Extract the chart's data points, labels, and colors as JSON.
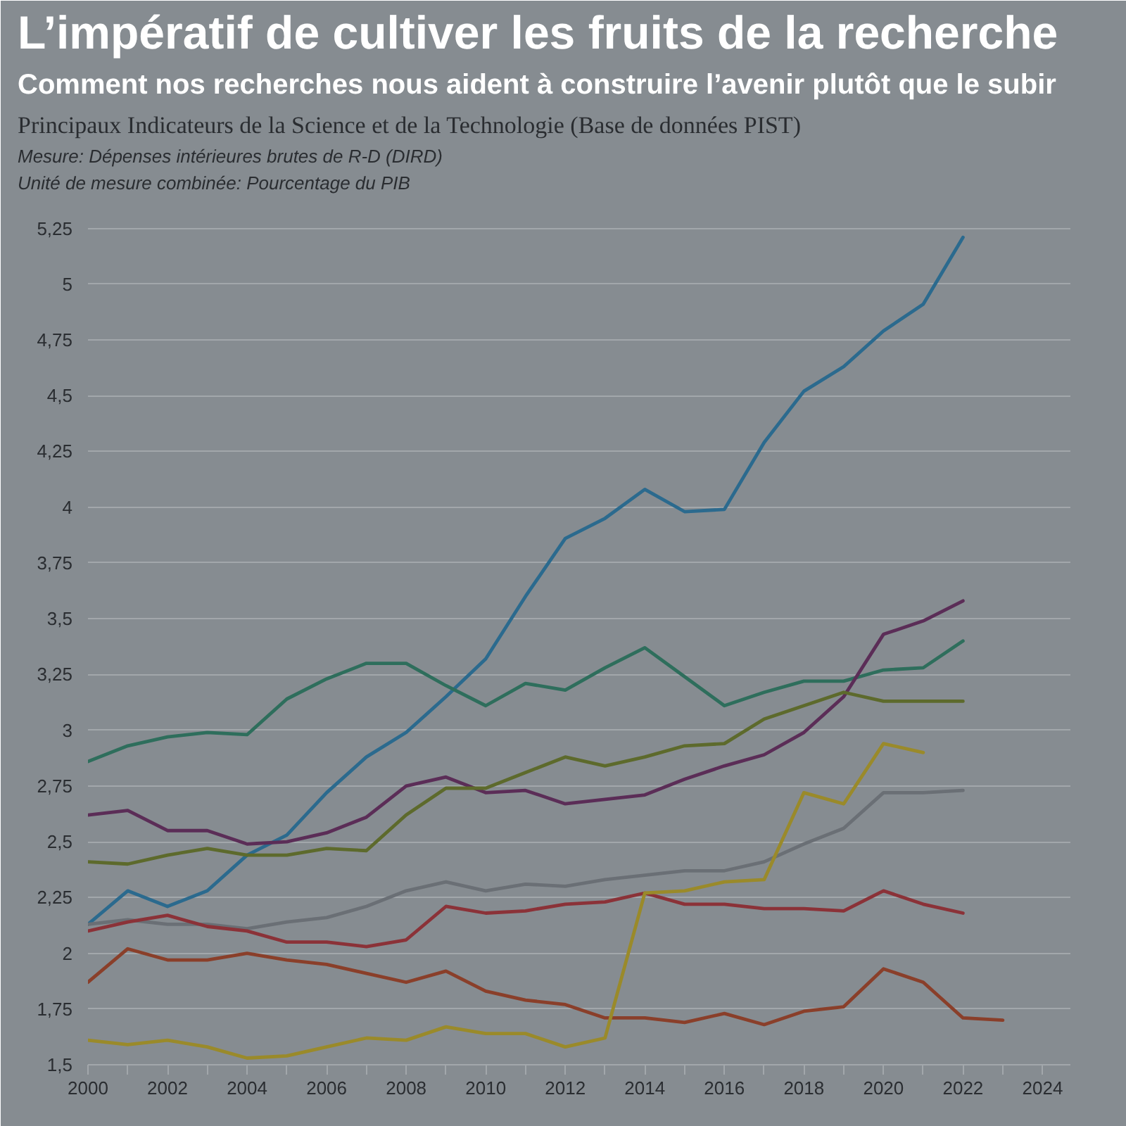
{
  "chart_data": {
    "type": "line",
    "title": "L’impératif de cultiver les fruits de la recherche",
    "subtitle": "Comment nos recherches nous aident à construire l’avenir plutôt que le subir",
    "annotations": [
      "Principaux Indicateurs de la Science et de la Technologie (Base de données PIST)",
      "Mesure: Dépenses intérieures brutes de R-D (DIRD)",
      "Unité de mesure combinée: Pourcentage du PIB"
    ],
    "x": [
      2000,
      2001,
      2002,
      2003,
      2004,
      2005,
      2006,
      2007,
      2008,
      2009,
      2010,
      2011,
      2012,
      2013,
      2014,
      2015,
      2016,
      2017,
      2018,
      2019,
      2020,
      2021,
      2022,
      2023
    ],
    "series": [
      {
        "color": "#2b6a8e",
        "values": [
          2.13,
          2.28,
          2.21,
          2.28,
          2.44,
          2.53,
          2.72,
          2.88,
          2.99,
          3.15,
          3.32,
          3.6,
          3.86,
          3.95,
          4.08,
          3.98,
          3.99,
          4.29,
          4.52,
          4.63,
          4.79,
          4.91,
          5.21,
          null
        ]
      },
      {
        "color": "#2e6e5c",
        "values": [
          2.86,
          2.93,
          2.97,
          2.99,
          2.98,
          3.14,
          3.23,
          3.3,
          3.3,
          3.2,
          3.11,
          3.21,
          3.18,
          3.28,
          3.37,
          3.24,
          3.11,
          3.17,
          3.22,
          3.22,
          3.27,
          3.28,
          3.4,
          null
        ]
      },
      {
        "color": "#5b2d57",
        "values": [
          2.62,
          2.64,
          2.55,
          2.55,
          2.49,
          2.5,
          2.54,
          2.61,
          2.75,
          2.79,
          2.72,
          2.73,
          2.67,
          2.69,
          2.71,
          2.78,
          2.84,
          2.89,
          2.99,
          3.15,
          3.43,
          3.49,
          3.58,
          null
        ]
      },
      {
        "color": "#5d6a2c",
        "values": [
          2.41,
          2.4,
          2.44,
          2.47,
          2.44,
          2.44,
          2.47,
          2.46,
          2.62,
          2.74,
          2.74,
          2.81,
          2.88,
          2.84,
          2.88,
          2.93,
          2.94,
          3.05,
          3.11,
          3.17,
          3.13,
          3.13,
          3.13,
          null
        ]
      },
      {
        "color": "#6a6f75",
        "values": [
          2.13,
          2.15,
          2.13,
          2.13,
          2.11,
          2.14,
          2.16,
          2.21,
          2.28,
          2.32,
          2.28,
          2.31,
          2.3,
          2.33,
          2.35,
          2.37,
          2.37,
          2.41,
          2.49,
          2.56,
          2.72,
          2.72,
          2.73,
          null
        ]
      },
      {
        "color": "#8b3238",
        "values": [
          2.1,
          2.14,
          2.17,
          2.12,
          2.1,
          2.05,
          2.05,
          2.03,
          2.06,
          2.21,
          2.18,
          2.19,
          2.22,
          2.23,
          2.27,
          2.22,
          2.22,
          2.2,
          2.2,
          2.19,
          2.28,
          2.22,
          2.18,
          null
        ]
      },
      {
        "color": "#8a3f2a",
        "values": [
          1.87,
          2.02,
          1.97,
          1.97,
          2.0,
          1.97,
          1.95,
          1.91,
          1.87,
          1.92,
          1.83,
          1.79,
          1.77,
          1.71,
          1.71,
          1.69,
          1.73,
          1.68,
          1.74,
          1.76,
          1.93,
          1.87,
          1.71,
          1.7
        ]
      },
      {
        "color": "#9a8a2a",
        "values": [
          1.61,
          1.59,
          1.61,
          1.58,
          1.53,
          1.54,
          1.58,
          1.62,
          1.61,
          1.67,
          1.64,
          1.64,
          1.58,
          1.62,
          2.27,
          2.28,
          2.32,
          2.33,
          2.72,
          2.67,
          2.94,
          2.9,
          null,
          null
        ]
      }
    ],
    "xlim": [
      2000,
      2024.7
    ],
    "xticks": [
      2000,
      {
        "value": 2001,
        "label": null
      },
      2002,
      {
        "value": 2003,
        "label": null
      },
      2004,
      {
        "value": 2005,
        "label": null
      },
      2006,
      {
        "value": 2007,
        "label": null
      },
      2008,
      {
        "value": 2009,
        "label": null
      },
      2010,
      {
        "value": 2011,
        "label": null
      },
      2012,
      {
        "value": 2013,
        "label": null
      },
      2014,
      {
        "value": 2015,
        "label": null
      },
      2016,
      {
        "value": 2017,
        "label": null
      },
      2018,
      {
        "value": 2019,
        "label": null
      },
      2020,
      {
        "value": 2021,
        "label": null
      },
      2022,
      {
        "value": 2023,
        "label": null
      },
      2024
    ],
    "ylim": [
      1.5,
      5.4
    ],
    "yticks": [
      {
        "value": 1.5,
        "label": "1,5"
      },
      {
        "value": 1.75,
        "label": "1,75"
      },
      2,
      {
        "value": 2.25,
        "label": "2,25"
      },
      {
        "value": 2.5,
        "label": "2,5"
      },
      {
        "value": 2.75,
        "label": "2,75"
      },
      3,
      {
        "value": 3.25,
        "label": "3,25"
      },
      {
        "value": 3.5,
        "label": "3,5"
      },
      {
        "value": 3.75,
        "label": "3,75"
      },
      4,
      {
        "value": 4.25,
        "label": "4,25"
      },
      {
        "value": 4.5,
        "label": "4,5"
      },
      {
        "value": 4.75,
        "label": "4,75"
      },
      5,
      {
        "value": 5.25,
        "label": "5,25"
      }
    ],
    "grid": "y"
  }
}
